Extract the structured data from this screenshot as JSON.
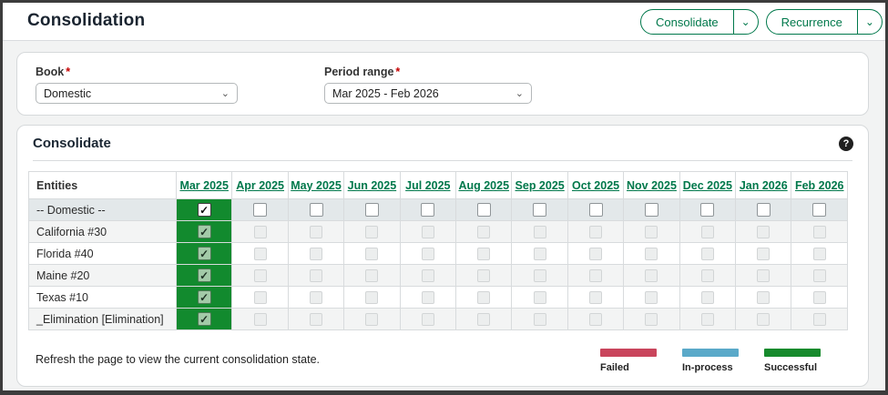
{
  "icons": {
    "chevron_down": "⌄",
    "help": "?",
    "check": "✓"
  },
  "colors": {
    "accent_green": "#00784b",
    "checked_cell_green": "#128a2e",
    "required_red": "#c40000",
    "legend_failed": "#c9455c",
    "legend_in_process": "#5aa9c9",
    "legend_successful": "#168a2c"
  },
  "header": {
    "title": "Consolidation",
    "actions": {
      "consolidate": "Consolidate",
      "recurrence": "Recurrence",
      "more": "M"
    }
  },
  "filters": {
    "book": {
      "label": "Book",
      "required_marker": "*",
      "value": "Domestic"
    },
    "period_range": {
      "label": "Period range",
      "required_marker": "*",
      "value": "Mar 2025 - Feb 2026"
    }
  },
  "consolidate_section": {
    "title": "Consolidate"
  },
  "table": {
    "entity_column_header": "Entities",
    "month_columns": [
      "Mar 2025",
      "Apr 2025",
      "May 2025",
      "Jun 2025",
      "Jul 2025",
      "Aug 2025",
      "Sep 2025",
      "Oct 2025",
      "Nov 2025",
      "Dec 2025",
      "Jan 2026",
      "Feb 2026"
    ],
    "rows": [
      {
        "entity": "-- Domestic --",
        "enabled": true,
        "checks": [
          true,
          false,
          false,
          false,
          false,
          false,
          false,
          false,
          false,
          false,
          false,
          false
        ]
      },
      {
        "entity": "California #30",
        "enabled": false,
        "checks": [
          true,
          false,
          false,
          false,
          false,
          false,
          false,
          false,
          false,
          false,
          false,
          false
        ]
      },
      {
        "entity": "Florida #40",
        "enabled": false,
        "checks": [
          true,
          false,
          false,
          false,
          false,
          false,
          false,
          false,
          false,
          false,
          false,
          false
        ]
      },
      {
        "entity": "Maine #20",
        "enabled": false,
        "checks": [
          true,
          false,
          false,
          false,
          false,
          false,
          false,
          false,
          false,
          false,
          false,
          false
        ]
      },
      {
        "entity": "Texas #10",
        "enabled": false,
        "checks": [
          true,
          false,
          false,
          false,
          false,
          false,
          false,
          false,
          false,
          false,
          false,
          false
        ]
      },
      {
        "entity": "_Elimination [Elimination]",
        "enabled": false,
        "checks": [
          true,
          false,
          false,
          false,
          false,
          false,
          false,
          false,
          false,
          false,
          false,
          false
        ]
      }
    ]
  },
  "footer": {
    "note": "Refresh the page to view the current consolidation state.",
    "legend": [
      {
        "label": "Failed",
        "color": "#c9455c"
      },
      {
        "label": "In-process",
        "color": "#5aa9c9"
      },
      {
        "label": "Successful",
        "color": "#168a2c"
      }
    ]
  }
}
